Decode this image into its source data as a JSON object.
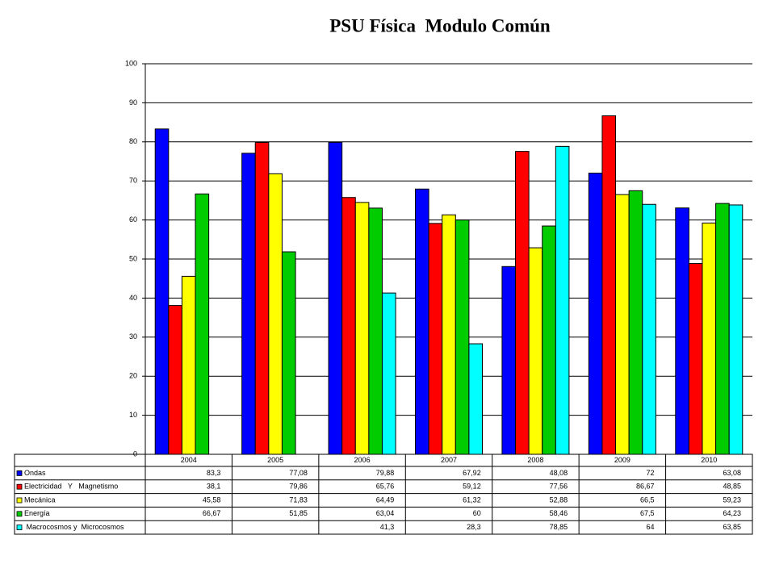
{
  "chart_data": {
    "type": "bar",
    "title": "PSU Física  Modulo Común",
    "categories": [
      "2004",
      "2005",
      "2006",
      "2007",
      "2008",
      "2009",
      "2010"
    ],
    "series": [
      {
        "name": "Ondas",
        "color": "#0000ff",
        "values": [
          83.3,
          77.08,
          79.88,
          67.92,
          48.08,
          72,
          63.08
        ],
        "value_labels": [
          "83,3",
          "77,08",
          "79,88",
          "67,92",
          "48,08",
          "72",
          "63,08"
        ]
      },
      {
        "name": "Electricidad   Y   Magnetismo",
        "color": "#ff0000",
        "values": [
          38.1,
          79.86,
          65.76,
          59.12,
          77.56,
          86.67,
          48.85
        ],
        "value_labels": [
          "38,1",
          "79,86",
          "65,76",
          "59,12",
          "77,56",
          "86,67",
          "48,85"
        ]
      },
      {
        "name": "Mecánica",
        "color": "#ffff00",
        "values": [
          45.58,
          71.83,
          64.49,
          61.32,
          52.88,
          66.5,
          59.23
        ],
        "value_labels": [
          "45,58",
          "71,83",
          "64,49",
          "61,32",
          "52,88",
          "66,5",
          "59,23"
        ]
      },
      {
        "name": "Energía",
        "color": "#00cc00",
        "values": [
          66.67,
          51.85,
          63.04,
          60,
          58.46,
          67.5,
          64.23
        ],
        "value_labels": [
          "66,67",
          "51,85",
          "63,04",
          "60",
          "58,46",
          "67,5",
          "64,23"
        ]
      },
      {
        "name": " Macrocosmos y  Microcosmos",
        "color": "#00ffff",
        "values": [
          null,
          null,
          41.3,
          28.3,
          78.85,
          64,
          63.85
        ],
        "value_labels": [
          null,
          null,
          "41,3",
          "28,3",
          "78,85",
          "64",
          "63,85"
        ]
      }
    ],
    "ylim": [
      0,
      100
    ],
    "yticks": [
      0,
      10,
      20,
      30,
      40,
      50,
      60,
      70,
      80,
      90,
      100
    ],
    "grid": true
  }
}
